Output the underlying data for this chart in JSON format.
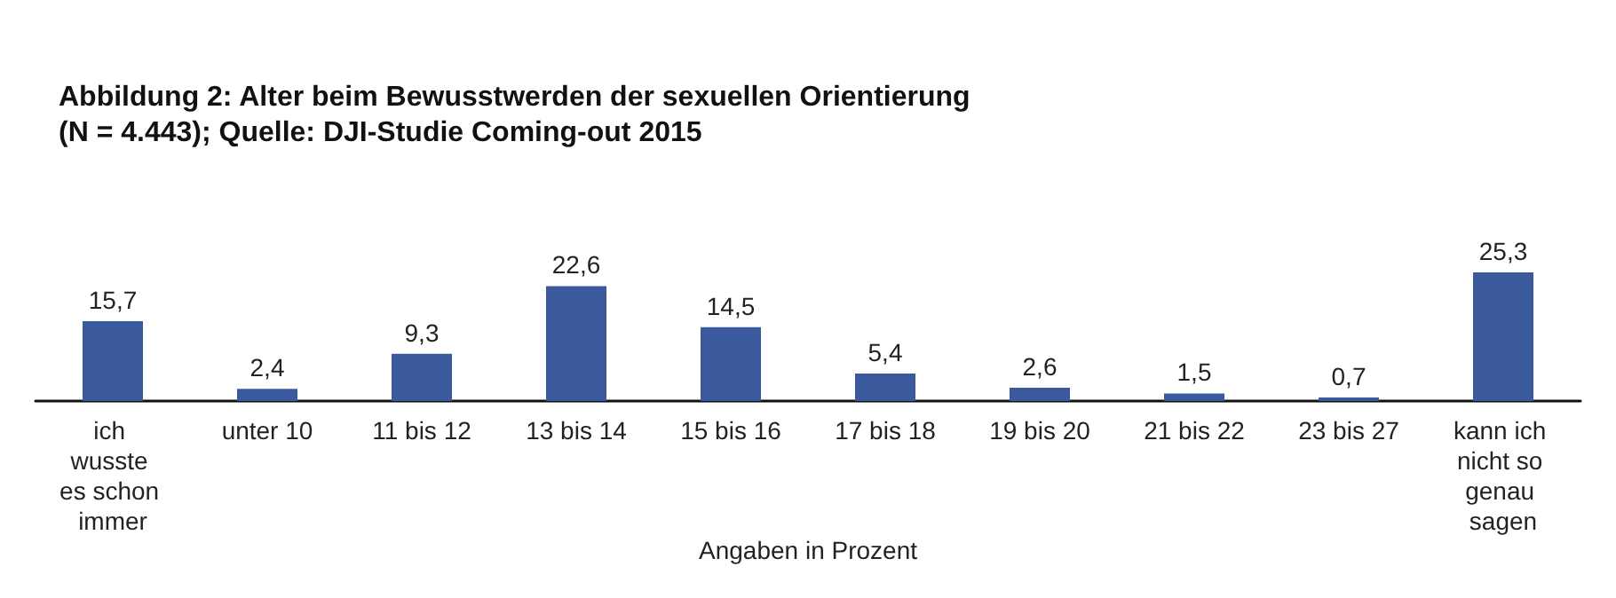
{
  "chart_data": {
    "type": "bar",
    "title": "Abbildung 2: Alter beim Bewusstwerden der sexuellen Orientierung\n(N = 4.443); Quelle: DJI-Studie Coming-out 2015",
    "xlabel": "Angaben in Prozent",
    "categories": [
      "ich wusste es schon immer",
      "unter 10",
      "11 bis 12",
      "13 bis 14",
      "15 bis 16",
      "17 bis 18",
      "19 bis 20",
      "21 bis 22",
      "23 bis 27",
      "kann ich nicht so genau sagen"
    ],
    "values": [
      15.7,
      2.4,
      9.3,
      22.6,
      14.5,
      5.4,
      2.6,
      1.5,
      0.7,
      25.3
    ],
    "value_labels": [
      "15,7",
      "2,4",
      "9,3",
      "22,6",
      "14,5",
      "5,4",
      "2,6",
      "1,5",
      "0,7",
      "25,3"
    ],
    "color": "#3b5a9d"
  }
}
